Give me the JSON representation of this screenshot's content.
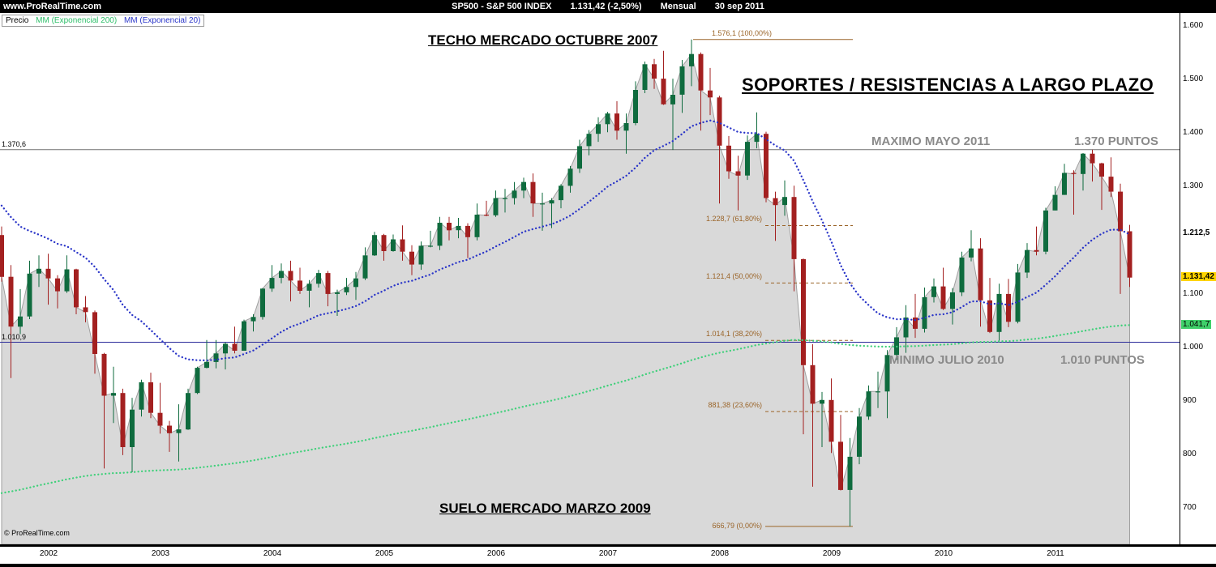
{
  "top_bar": {
    "site": "www.ProRealTime.com",
    "symbol_title": "SP500 - S&P 500 INDEX",
    "last_price_change": "1.131,42 (-2,50%)",
    "period": "Mensual",
    "date": "30 sep 2011"
  },
  "legend": {
    "price_label": "Precio",
    "ma200_label": "MM (Exponencial 200)",
    "ma20_label": "MM (Exponencial 20)"
  },
  "annotations": {
    "techo": "TECHO MERCADO OCTUBRE 2007",
    "soportes": "SOPORTES / RESISTENCIAS A LARGO PLAZO",
    "maximo_label": "MAXIMO MAYO 2011",
    "maximo_value": "1.370 PUNTOS",
    "minimo_label": "MINIMO JULIO 2010",
    "minimo_value": "1.010 PUNTOS",
    "suelo": "SUELO MERCADO MARZO 2009",
    "copyright": "© ProRealTime.com"
  },
  "levels": {
    "resistance": {
      "label": "1.370,6",
      "price": 1370.6,
      "color": "#707070"
    },
    "support": {
      "label": "1.010,9",
      "price": 1010.9,
      "color": "#2a2a9a"
    }
  },
  "fibonacci": [
    {
      "label": "1.576,1 (100,00%)",
      "price": 1576.1,
      "style": "solid",
      "long": true
    },
    {
      "label": "1.228,7 (61,80%)",
      "price": 1228.7,
      "style": "dashed",
      "long": false
    },
    {
      "label": "1.121,4 (50,00%)",
      "price": 1121.4,
      "style": "dashed",
      "long": false
    },
    {
      "label": "1.014,1 (38,20%)",
      "price": 1014.1,
      "style": "dashed",
      "long": false
    },
    {
      "label": "881,38 (23,60%)",
      "price": 881.38,
      "style": "dashed",
      "long": false
    },
    {
      "label": "666,79 (0,00%)",
      "price": 666.79,
      "style": "solid",
      "long": false
    }
  ],
  "y_axis": {
    "labels": [
      {
        "text": "1.600",
        "price": 1600,
        "style": "plain"
      },
      {
        "text": "1.500",
        "price": 1500,
        "style": "plain"
      },
      {
        "text": "1.400",
        "price": 1400,
        "style": "plain"
      },
      {
        "text": "1.300",
        "price": 1300,
        "style": "plain"
      },
      {
        "text": "1.212,5",
        "price": 1212.5,
        "style": "tag-ma20"
      },
      {
        "text": "1.131,42",
        "price": 1131.42,
        "style": "tag-last"
      },
      {
        "text": "1.100",
        "price": 1100,
        "style": "plain"
      },
      {
        "text": "1.041,7",
        "price": 1041.7,
        "style": "tag-ma200"
      },
      {
        "text": "1.000",
        "price": 1000,
        "style": "plain"
      },
      {
        "text": "900",
        "price": 900,
        "style": "plain"
      },
      {
        "text": "800",
        "price": 800,
        "style": "plain"
      },
      {
        "text": "700",
        "price": 700,
        "style": "plain"
      }
    ]
  },
  "x_axis": {
    "years": [
      "2002",
      "2003",
      "2004",
      "2005",
      "2006",
      "2007",
      "2008",
      "2009",
      "2010",
      "2011"
    ]
  },
  "chart_data": {
    "type": "candlestick",
    "title": "SP500 - S&P 500 INDEX",
    "interval": "monthly",
    "start": "2001-08",
    "end": "2011-09",
    "last_price": 1131.42,
    "change_pct": -2.5,
    "ylim": [
      640,
      1625
    ],
    "colors": {
      "up": "#0f6b3e",
      "down": "#a32020",
      "area_fill": "#d9d9d9",
      "area_edge": "#a0a0a0",
      "ema20": "#2a35c8",
      "ema200": "#3fd07a",
      "fib": "#9a6428"
    },
    "ema20": {
      "period": 20,
      "seed": 1280,
      "last": 1212.5
    },
    "ema200": {
      "period": 200,
      "seed": 725,
      "last": 1041.7
    },
    "ohlc": [
      [
        1211,
        1227,
        1124,
        1133
      ],
      [
        1133,
        1155,
        944,
        1040
      ],
      [
        1040,
        1110,
        1026,
        1059
      ],
      [
        1059,
        1163,
        1054,
        1139
      ],
      [
        1139,
        1173,
        1114,
        1148
      ],
      [
        1148,
        1176,
        1081,
        1130
      ],
      [
        1130,
        1136,
        1074,
        1106
      ],
      [
        1106,
        1173,
        1103,
        1147
      ],
      [
        1147,
        1148,
        1063,
        1076
      ],
      [
        1076,
        1097,
        1048,
        1067
      ],
      [
        1067,
        1070,
        952,
        989
      ],
      [
        989,
        991,
        775,
        911
      ],
      [
        911,
        965,
        860,
        916
      ],
      [
        916,
        924,
        800,
        815
      ],
      [
        815,
        907,
        768,
        885
      ],
      [
        885,
        941,
        872,
        936
      ],
      [
        936,
        954,
        869,
        879
      ],
      [
        879,
        935,
        840,
        855
      ],
      [
        855,
        864,
        806,
        841
      ],
      [
        841,
        895,
        788,
        848
      ],
      [
        848,
        924,
        847,
        916
      ],
      [
        916,
        965,
        914,
        963
      ],
      [
        963,
        1015,
        962,
        974
      ],
      [
        974,
        1015,
        962,
        990
      ],
      [
        990,
        1011,
        960,
        1008
      ],
      [
        1008,
        1040,
        990,
        995
      ],
      [
        995,
        1053,
        995,
        1050
      ],
      [
        1050,
        1063,
        1031,
        1058
      ],
      [
        1058,
        1112,
        1053,
        1111
      ],
      [
        1111,
        1155,
        1105,
        1131
      ],
      [
        1131,
        1158,
        1121,
        1144
      ],
      [
        1144,
        1163,
        1087,
        1126
      ],
      [
        1126,
        1150,
        1101,
        1107
      ],
      [
        1107,
        1127,
        1076,
        1120
      ],
      [
        1120,
        1146,
        1113,
        1140
      ],
      [
        1140,
        1144,
        1078,
        1101
      ],
      [
        1101,
        1109,
        1060,
        1104
      ],
      [
        1104,
        1131,
        1099,
        1114
      ],
      [
        1114,
        1142,
        1090,
        1130
      ],
      [
        1130,
        1188,
        1127,
        1173
      ],
      [
        1173,
        1217,
        1172,
        1211
      ],
      [
        1211,
        1213,
        1163,
        1181
      ],
      [
        1181,
        1212,
        1180,
        1203
      ],
      [
        1203,
        1229,
        1163,
        1180
      ],
      [
        1180,
        1192,
        1136,
        1156
      ],
      [
        1156,
        1199,
        1146,
        1191
      ],
      [
        1191,
        1219,
        1188,
        1191
      ],
      [
        1191,
        1245,
        1183,
        1234
      ],
      [
        1234,
        1245,
        1201,
        1220
      ],
      [
        1220,
        1243,
        1205,
        1228
      ],
      [
        1228,
        1233,
        1168,
        1207
      ],
      [
        1207,
        1270,
        1201,
        1249
      ],
      [
        1249,
        1275,
        1246,
        1248
      ],
      [
        1248,
        1294,
        1245,
        1280
      ],
      [
        1280,
        1297,
        1253,
        1280
      ],
      [
        1280,
        1310,
        1268,
        1294
      ],
      [
        1294,
        1318,
        1280,
        1310
      ],
      [
        1310,
        1326,
        1245,
        1270
      ],
      [
        1270,
        1290,
        1219,
        1270
      ],
      [
        1270,
        1280,
        1224,
        1276
      ],
      [
        1276,
        1306,
        1261,
        1303
      ],
      [
        1303,
        1340,
        1290,
        1335
      ],
      [
        1335,
        1389,
        1327,
        1377
      ],
      [
        1377,
        1407,
        1360,
        1400
      ],
      [
        1400,
        1431,
        1385,
        1418
      ],
      [
        1418,
        1441,
        1403,
        1438
      ],
      [
        1438,
        1461,
        1389,
        1406
      ],
      [
        1406,
        1438,
        1363,
        1420
      ],
      [
        1420,
        1498,
        1416,
        1482
      ],
      [
        1482,
        1535,
        1476,
        1530
      ],
      [
        1530,
        1540,
        1484,
        1503
      ],
      [
        1503,
        1555,
        1454,
        1455
      ],
      [
        1455,
        1503,
        1370,
        1473
      ],
      [
        1473,
        1538,
        1439,
        1526
      ],
      [
        1526,
        1576.1,
        1489,
        1549
      ],
      [
        1549,
        1552,
        1406,
        1481
      ],
      [
        1481,
        1523,
        1435,
        1468
      ],
      [
        1468,
        1471,
        1270,
        1378
      ],
      [
        1378,
        1396,
        1316,
        1330
      ],
      [
        1330,
        1359,
        1257,
        1322
      ],
      [
        1322,
        1397,
        1314,
        1385
      ],
      [
        1385,
        1440,
        1373,
        1400
      ],
      [
        1400,
        1404,
        1272,
        1280
      ],
      [
        1280,
        1292,
        1200,
        1267
      ],
      [
        1267,
        1313,
        1247,
        1282
      ],
      [
        1282,
        1303,
        1106,
        1166
      ],
      [
        1166,
        1167,
        839,
        968
      ],
      [
        968,
        1007,
        741,
        896
      ],
      [
        896,
        918,
        815,
        903
      ],
      [
        903,
        943,
        804,
        825
      ],
      [
        825,
        875,
        734,
        735
      ],
      [
        735,
        832,
        666.79,
        797
      ],
      [
        797,
        888,
        783,
        872
      ],
      [
        872,
        930,
        866,
        919
      ],
      [
        919,
        956,
        888,
        919
      ],
      [
        919,
        996,
        869,
        987
      ],
      [
        987,
        1039,
        978,
        1020
      ],
      [
        1020,
        1080,
        991,
        1057
      ],
      [
        1057,
        1101,
        1019,
        1036
      ],
      [
        1036,
        1113,
        1029,
        1095
      ],
      [
        1095,
        1130,
        1085,
        1115
      ],
      [
        1115,
        1150,
        1071,
        1073
      ],
      [
        1073,
        1112,
        1044,
        1104
      ],
      [
        1104,
        1180,
        1097,
        1169
      ],
      [
        1169,
        1220,
        1162,
        1186
      ],
      [
        1186,
        1205,
        1040,
        1089
      ],
      [
        1089,
        1131,
        1028,
        1030
      ],
      [
        1030,
        1120,
        1010.9,
        1101
      ],
      [
        1101,
        1129,
        1039,
        1049
      ],
      [
        1049,
        1157,
        1046,
        1141
      ],
      [
        1141,
        1196,
        1131,
        1183
      ],
      [
        1183,
        1227,
        1173,
        1180
      ],
      [
        1180,
        1262,
        1175,
        1257
      ],
      [
        1257,
        1302,
        1257,
        1286
      ],
      [
        1286,
        1344,
        1286,
        1327
      ],
      [
        1327,
        1332,
        1249,
        1325
      ],
      [
        1325,
        1364,
        1294,
        1363
      ],
      [
        1363,
        1370.6,
        1311,
        1345
      ],
      [
        1345,
        1346,
        1258,
        1320
      ],
      [
        1320,
        1356,
        1282,
        1292
      ],
      [
        1292,
        1307,
        1101,
        1218
      ],
      [
        1218,
        1230,
        1114,
        1131.42
      ]
    ]
  }
}
